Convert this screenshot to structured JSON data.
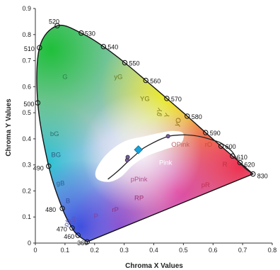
{
  "chart_data": {
    "type": "scatter",
    "xlabel": "Chroma X Values",
    "ylabel": "Chroma Y Values",
    "xlim": [
      0,
      0.8
    ],
    "ylim": [
      0,
      0.9
    ],
    "x_ticks": [
      0,
      0.1,
      0.2,
      0.3,
      0.4,
      0.5,
      0.6,
      0.7,
      0.8
    ],
    "x_tick_labels": [
      "0",
      "0.1",
      "0.2",
      "0.3",
      "0.4",
      "0.5",
      "0.6",
      "0.7",
      "0.8"
    ],
    "y_ticks": [
      0,
      0.1,
      0.2,
      0.3,
      0.4,
      0.5,
      0.6,
      0.7,
      0.8,
      0.9
    ],
    "y_tick_labels": [
      "0",
      "0.1",
      "0.2",
      "0.3",
      "0.4",
      "0.5",
      "0.6",
      "0.7",
      "0.8",
      "0.9"
    ],
    "grid": false,
    "spectral_locus": [
      {
        "label": "360",
        "x": 0.175,
        "y": 0.005
      },
      {
        "label": "460",
        "x": 0.144,
        "y": 0.03
      },
      {
        "label": "470",
        "x": 0.124,
        "y": 0.058
      },
      {
        "label": "480",
        "x": 0.091,
        "y": 0.133
      },
      {
        "label": "490",
        "x": 0.045,
        "y": 0.295
      },
      {
        "label": "500",
        "x": 0.008,
        "y": 0.538
      },
      {
        "label": "510",
        "x": 0.014,
        "y": 0.75
      },
      {
        "label": "520",
        "x": 0.074,
        "y": 0.834
      },
      {
        "label": "530",
        "x": 0.155,
        "y": 0.806
      },
      {
        "label": "540",
        "x": 0.23,
        "y": 0.754
      },
      {
        "label": "550",
        "x": 0.302,
        "y": 0.692
      },
      {
        "label": "560",
        "x": 0.373,
        "y": 0.624
      },
      {
        "label": "570",
        "x": 0.444,
        "y": 0.555
      },
      {
        "label": "580",
        "x": 0.513,
        "y": 0.487
      },
      {
        "label": "590",
        "x": 0.575,
        "y": 0.424
      },
      {
        "label": "600",
        "x": 0.627,
        "y": 0.372
      },
      {
        "label": "610",
        "x": 0.666,
        "y": 0.334
      },
      {
        "label": "620",
        "x": 0.691,
        "y": 0.309
      },
      {
        "label": "830",
        "x": 0.735,
        "y": 0.265
      }
    ],
    "blackbody_curve": [
      [
        0.245,
        0.245
      ],
      [
        0.265,
        0.263
      ],
      [
        0.29,
        0.288
      ],
      [
        0.31,
        0.31
      ],
      [
        0.335,
        0.335
      ],
      [
        0.36,
        0.36
      ],
      [
        0.39,
        0.38
      ],
      [
        0.42,
        0.397
      ],
      [
        0.45,
        0.41
      ],
      [
        0.48,
        0.414
      ],
      [
        0.51,
        0.415
      ],
      [
        0.54,
        0.412
      ],
      [
        0.57,
        0.405
      ],
      [
        0.6,
        0.395
      ],
      [
        0.625,
        0.385
      ],
      [
        0.645,
        0.37
      ],
      [
        0.665,
        0.35
      ],
      [
        0.685,
        0.315
      ],
      [
        0.71,
        0.285
      ],
      [
        0.735,
        0.265
      ]
    ],
    "markers": [
      {
        "x": 0.31,
        "y": 0.318,
        "shape": "circle"
      },
      {
        "x": 0.312,
        "y": 0.33,
        "shape": "circle"
      },
      {
        "x": 0.348,
        "y": 0.358,
        "shape": "diamond"
      },
      {
        "x": 0.448,
        "y": 0.41,
        "shape": "circle"
      }
    ],
    "region_labels": [
      {
        "text": "G",
        "x": 0.1,
        "y": 0.63,
        "color": "#2e7d4f"
      },
      {
        "text": "yG",
        "x": 0.28,
        "y": 0.63,
        "color": "#6b7a1e"
      },
      {
        "text": "YG",
        "x": 0.37,
        "y": 0.545,
        "color": "#7a7a10"
      },
      {
        "text": "gY",
        "x": 0.425,
        "y": 0.5,
        "color": "#8a7a10",
        "rotate": -70
      },
      {
        "text": "Y",
        "x": 0.452,
        "y": 0.487,
        "color": "#8a7a10",
        "rotate": -70
      },
      {
        "text": "yO",
        "x": 0.488,
        "y": 0.462,
        "color": "#8a6a10",
        "rotate": -70
      },
      {
        "text": "bG",
        "x": 0.065,
        "y": 0.41,
        "color": "#2e6e6e"
      },
      {
        "text": "BG",
        "x": 0.07,
        "y": 0.33,
        "color": "#2e6080"
      },
      {
        "text": "gB",
        "x": 0.085,
        "y": 0.222,
        "color": "#2e5e90"
      },
      {
        "text": "B",
        "x": 0.11,
        "y": 0.153,
        "color": "#3050a0"
      },
      {
        "text": "pB",
        "x": 0.115,
        "y": 0.075,
        "color": "#5050b0",
        "rotate": -60
      },
      {
        "text": "bP",
        "x": 0.135,
        "y": 0.082,
        "color": "#6050b0",
        "rotate": -60
      },
      {
        "text": "P",
        "x": 0.205,
        "y": 0.095,
        "color": "#8040a0"
      },
      {
        "text": "rP",
        "x": 0.27,
        "y": 0.12,
        "color": "#903080"
      },
      {
        "text": "RP",
        "x": 0.35,
        "y": 0.165,
        "color": "#a03070"
      },
      {
        "text": "pPink",
        "x": 0.35,
        "y": 0.237,
        "color": "#b05090"
      },
      {
        "text": "Pink",
        "x": 0.44,
        "y": 0.3,
        "color": "#ffffff"
      },
      {
        "text": "OPink",
        "x": 0.49,
        "y": 0.37,
        "color": "#c06060"
      },
      {
        "text": "rO",
        "x": 0.585,
        "y": 0.37,
        "color": "#c05030"
      },
      {
        "text": "pR",
        "x": 0.575,
        "y": 0.215,
        "color": "#c03050"
      },
      {
        "text": "R",
        "x": 0.64,
        "y": 0.293,
        "color": "#c03040"
      }
    ]
  }
}
